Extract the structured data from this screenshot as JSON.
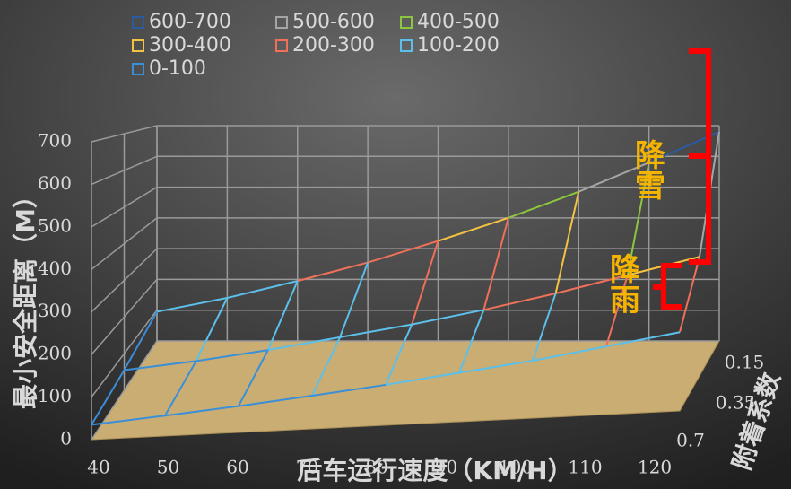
{
  "chart_data": {
    "type": "surface",
    "x_title": "后车运行速度（KM/H）",
    "y_title": "最小安全距离（M）",
    "z_title": "附着系数",
    "categories": [
      "40",
      "50",
      "60",
      "70",
      "80",
      "90",
      "100",
      "110",
      "120"
    ],
    "z_categories": [
      "0.15",
      "0.35",
      "0.7"
    ],
    "values": [
      [
        95,
        140,
        195,
        255,
        325,
        400,
        485,
        580,
        680
      ],
      [
        55,
        75,
        100,
        130,
        160,
        195,
        235,
        280,
        325
      ],
      [
        35,
        48,
        62,
        78,
        95,
        115,
        135,
        160,
        185
      ]
    ],
    "ylim": [
      0,
      700
    ],
    "yticks": [
      0,
      100,
      200,
      300,
      400,
      500,
      600,
      700
    ],
    "legend": [
      {
        "name": "600-700",
        "color": "#2a5aa0"
      },
      {
        "name": "500-600",
        "color": "#a5a5a5"
      },
      {
        "name": "400-500",
        "color": "#8cc63f"
      },
      {
        "name": "300-400",
        "color": "#f5c342"
      },
      {
        "name": "200-300",
        "color": "#f0705a"
      },
      {
        "name": "100-200",
        "color": "#5bc0eb"
      },
      {
        "name": "0-100",
        "color": "#3a8fd9"
      }
    ],
    "annotations": [
      "降雪",
      "降雨"
    ]
  }
}
